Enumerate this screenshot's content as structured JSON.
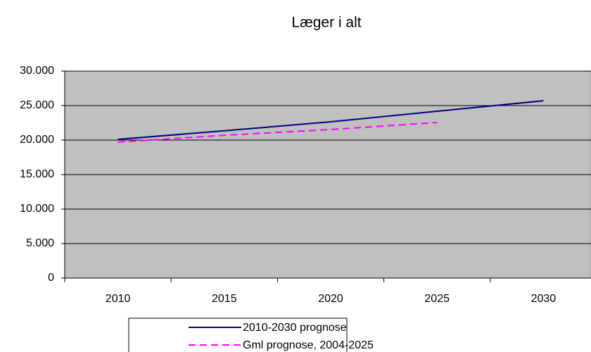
{
  "chart_data": {
    "type": "line",
    "title": "Læger i alt",
    "categories": [
      "2010",
      "2015",
      "2020",
      "2025",
      "2030"
    ],
    "series": [
      {
        "name": "2010-2030 prognose",
        "color": "#000080",
        "dash": false,
        "values": [
          20100,
          21350,
          22650,
          24180,
          25700
        ]
      },
      {
        "name": "Gml prognose, 2004-2025",
        "color": "#ff00ff",
        "dash": true,
        "values": [
          19700,
          20700,
          21530,
          22550,
          null
        ]
      }
    ],
    "ylim": [
      0,
      30000
    ],
    "yticks": [
      0,
      {
        "value": 5000,
        "label": "5.000"
      },
      {
        "value": 10000,
        "label": "10.000"
      },
      {
        "value": 15000,
        "label": "15.000"
      },
      {
        "value": 20000,
        "label": "20.000"
      },
      {
        "value": 25000,
        "label": "25.000"
      },
      {
        "value": 30000,
        "label": "30.000"
      }
    ],
    "grid": true
  }
}
